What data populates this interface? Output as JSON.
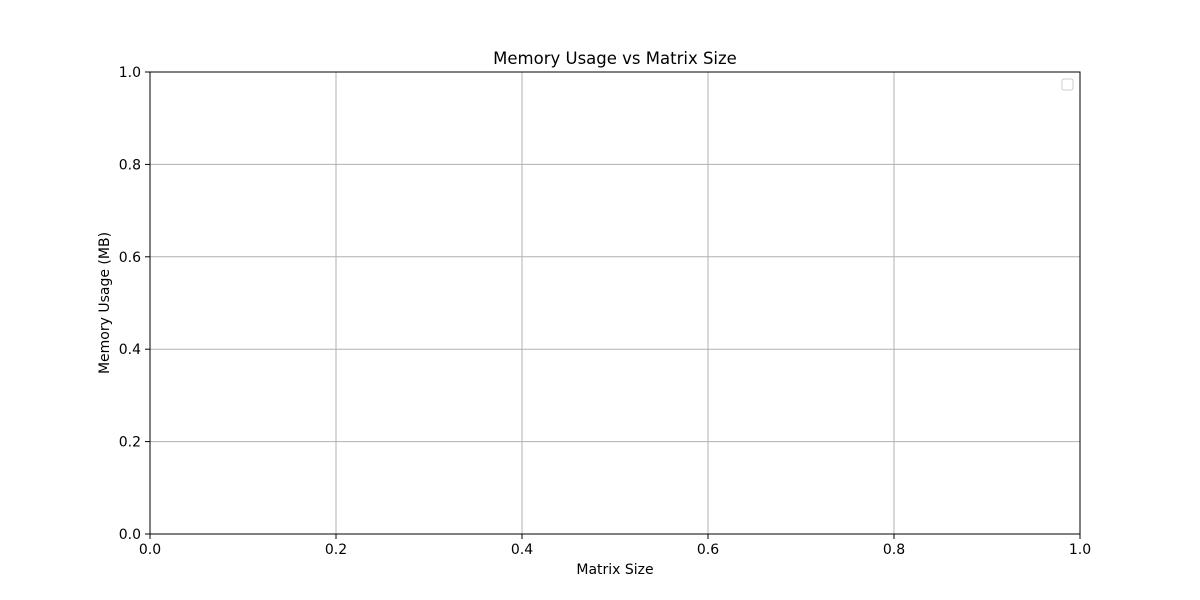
{
  "chart_data": {
    "type": "line",
    "title": "Memory Usage vs Matrix Size",
    "xlabel": "Matrix Size",
    "ylabel": "Memory Usage (MB)",
    "xlim": [
      0.0,
      1.0
    ],
    "ylim": [
      0.0,
      1.0
    ],
    "x_ticks": [
      "0.0",
      "0.2",
      "0.4",
      "0.6",
      "0.8",
      "1.0"
    ],
    "y_ticks": [
      "0.0",
      "0.2",
      "0.4",
      "0.6",
      "0.8",
      "1.0"
    ],
    "grid": true,
    "legend": "top-right",
    "series": []
  }
}
